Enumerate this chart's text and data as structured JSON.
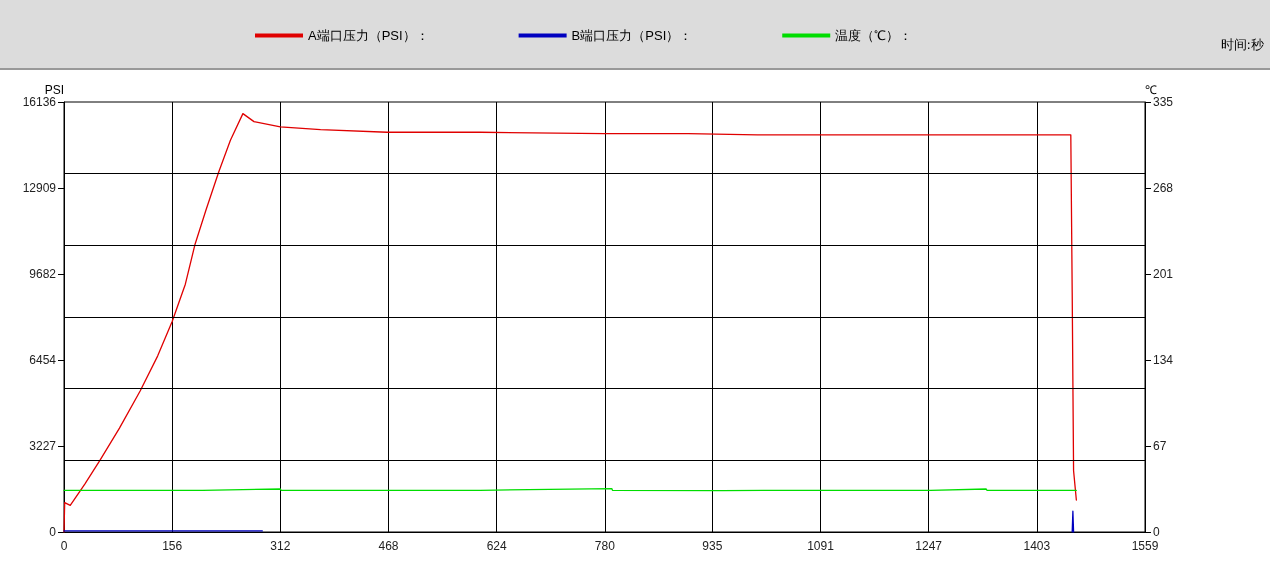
{
  "chart_data": {
    "type": "line",
    "xlabel": "时间:秒",
    "ylabel": "PSI",
    "y2label": "℃",
    "xlim": [
      0,
      1559
    ],
    "xticks": [
      0,
      156,
      312,
      468,
      624,
      780,
      935,
      1091,
      1247,
      1403,
      1559
    ],
    "ylim": [
      0,
      16136
    ],
    "yticks": [
      0,
      3227,
      6454,
      9682,
      12909,
      16136
    ],
    "y2lim": [
      0,
      335
    ],
    "y2ticks": [
      0,
      67,
      134,
      201,
      268,
      335
    ],
    "grid": "x",
    "legend": "top",
    "marker": "none",
    "line_style": "solid",
    "ref_lines": [
      {
        "axis": "y",
        "value": 2689,
        "color": "#000000"
      },
      {
        "axis": "y",
        "value": 5379,
        "color": "#000000"
      },
      {
        "axis": "y",
        "value": 8068,
        "color": "#000000"
      },
      {
        "axis": "y",
        "value": 10757,
        "color": "#000000"
      },
      {
        "axis": "y",
        "value": 13447,
        "color": "#000000"
      }
    ],
    "series": [
      {
        "name": "A端口压力（PSI）：",
        "color": "#e00000",
        "x": [
          0,
          1,
          9,
          30,
          52,
          80,
          110,
          135,
          156,
          175,
          189,
          205,
          223,
          240,
          258,
          274,
          312,
          370,
          466,
          600,
          780,
          900,
          1000,
          1100,
          1250,
          1400,
          1452,
          1454,
          1456,
          1460
        ],
        "values": [
          0,
          1100,
          1000,
          1800,
          2700,
          3900,
          5300,
          6600,
          7900,
          9300,
          10800,
          12100,
          13500,
          14700,
          15700,
          15400,
          15200,
          15100,
          15000,
          15000,
          14950,
          14950,
          14900,
          14900,
          14900,
          14900,
          14900,
          9000,
          2300,
          1200
        ]
      },
      {
        "name": "B端口压力（PSI）：",
        "color": "#0000c0",
        "x": [
          0,
          100,
          200,
          286,
          287,
          1454,
          1455,
          1456
        ],
        "values": [
          40,
          40,
          40,
          40,
          null,
          0,
          780,
          0
        ]
      },
      {
        "name": "温度（℃）：",
        "color": "#00dd00",
        "axis": "y2",
        "x": [
          0,
          100,
          200,
          312,
          313,
          450,
          600,
          790,
          791,
          950,
          1100,
          1250,
          1330,
          1331,
          1460
        ],
        "values": [
          32.5,
          32.5,
          32.5,
          33.5,
          32.5,
          32.5,
          32.5,
          33.8,
          32.5,
          32.3,
          32.5,
          32.5,
          33.5,
          32.5,
          32.5
        ]
      }
    ]
  }
}
